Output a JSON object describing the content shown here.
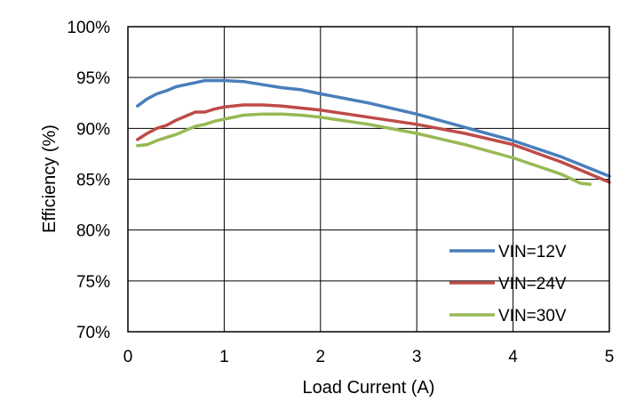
{
  "chart_data": {
    "type": "line",
    "title": "",
    "xlabel": "Load Current (A)",
    "ylabel": "Efficiency (%)",
    "xlim": [
      0,
      5
    ],
    "ylim": [
      70,
      100
    ],
    "x_ticks": [
      0,
      1,
      2,
      3,
      4,
      5
    ],
    "x_tick_labels": [
      "0",
      "1",
      "2",
      "3",
      "4",
      "5"
    ],
    "y_ticks": [
      70,
      75,
      80,
      85,
      90,
      95,
      100
    ],
    "y_tick_labels": [
      "70%",
      "75%",
      "80%",
      "85%",
      "90%",
      "95%",
      "100%"
    ],
    "grid": true,
    "legend_position": "bottom-right",
    "series": [
      {
        "name": "VIN=12V",
        "color": "#4a7ebb",
        "x": [
          0.1,
          0.2,
          0.3,
          0.4,
          0.5,
          0.6,
          0.7,
          0.8,
          0.9,
          1.0,
          1.2,
          1.4,
          1.6,
          1.8,
          2.0,
          2.5,
          3.0,
          3.5,
          4.0,
          4.5,
          5.0
        ],
        "y": [
          92.2,
          92.9,
          93.4,
          93.7,
          94.1,
          94.3,
          94.5,
          94.7,
          94.7,
          94.7,
          94.6,
          94.3,
          94.0,
          93.8,
          93.4,
          92.5,
          91.4,
          90.1,
          88.8,
          87.2,
          85.3
        ]
      },
      {
        "name": "VIN=24V",
        "color": "#be4b48",
        "x": [
          0.1,
          0.2,
          0.3,
          0.4,
          0.5,
          0.6,
          0.7,
          0.8,
          0.9,
          1.0,
          1.2,
          1.4,
          1.6,
          1.8,
          2.0,
          2.5,
          3.0,
          3.5,
          4.0,
          4.5,
          5.0
        ],
        "y": [
          88.9,
          89.5,
          90.0,
          90.3,
          90.8,
          91.2,
          91.6,
          91.6,
          91.9,
          92.1,
          92.3,
          92.3,
          92.2,
          92.0,
          91.8,
          91.1,
          90.4,
          89.5,
          88.4,
          86.7,
          84.7
        ]
      },
      {
        "name": "VIN=30V",
        "color": "#98b954",
        "x": [
          0.1,
          0.2,
          0.3,
          0.4,
          0.5,
          0.6,
          0.7,
          0.8,
          0.9,
          1.0,
          1.2,
          1.4,
          1.6,
          1.8,
          2.0,
          2.5,
          3.0,
          3.5,
          4.0,
          4.5,
          4.7,
          4.8
        ],
        "y": [
          88.3,
          88.4,
          88.8,
          89.1,
          89.4,
          89.8,
          90.2,
          90.4,
          90.7,
          90.9,
          91.3,
          91.4,
          91.4,
          91.3,
          91.1,
          90.4,
          89.5,
          88.4,
          87.1,
          85.5,
          84.6,
          84.5
        ]
      }
    ]
  }
}
